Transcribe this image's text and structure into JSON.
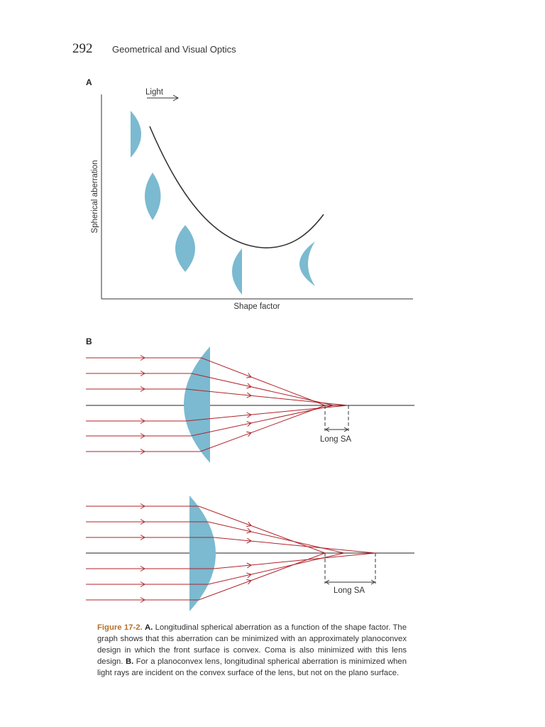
{
  "header": {
    "page_number": "292",
    "running_title": "Geometrical and Visual Optics"
  },
  "panel_a": {
    "label": "A",
    "light_label": "Light",
    "y_axis_label": "Spherical aberration",
    "x_axis_label": "Shape factor"
  },
  "panel_b": {
    "label": "B",
    "top_sa_label": "Long SA",
    "bottom_sa_label": "Long SA"
  },
  "caption": {
    "figure_label": "Figure 17-2.",
    "a_label": "A.",
    "a_text": " Longitudinal spherical aberration as a function of the shape factor. The graph shows that this aberration can be minimized with an approximately planoconvex design in which the front surface is convex. Coma is also minimized with this lens design. ",
    "b_label": "B.",
    "b_text": " For a planoconvex lens, longitudinal spherical aberration is minimized when light rays are incident on the convex surface of the lens, but not on the plano surface."
  },
  "colors": {
    "lens": "#7bbad0",
    "ray": "#b0232a",
    "caption_accent": "#b5702a"
  }
}
